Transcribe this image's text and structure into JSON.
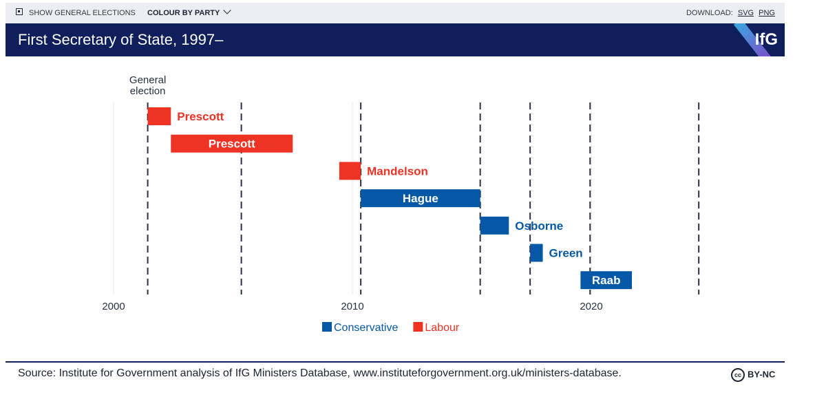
{
  "toolbar": {
    "show_elections_label": "SHOW GENERAL ELECTIONS",
    "colour_by_label": "COLOUR BY PARTY",
    "download_label": "DOWNLOAD:",
    "svg_label": "SVG",
    "png_label": "PNG"
  },
  "header": {
    "title": "First Secretary of State, 1997–",
    "logo": "IfG"
  },
  "colors": {
    "conservative": "#0558a6",
    "labour": "#ee3224",
    "navy": "#0f1f5c"
  },
  "chart_data": {
    "type": "gantt",
    "title": "First Secretary of State, 1997–",
    "x_range": [
      1998.6,
      2027
    ],
    "x_ticks": [
      2000,
      2010,
      2020
    ],
    "annotation": [
      "General",
      "election"
    ],
    "election_years": [
      2001.43,
      2005.35,
      2010.35,
      2015.35,
      2017.44,
      2019.95,
      2024.5
    ],
    "tenures": [
      {
        "name": "Prescott",
        "party": "Labour",
        "start": 2001.43,
        "end": 2002.4,
        "label_position": "outside"
      },
      {
        "name": "Prescott",
        "party": "Labour",
        "start": 2002.4,
        "end": 2007.5,
        "label_position": "inside"
      },
      {
        "name": "Mandelson",
        "party": "Labour",
        "start": 2009.45,
        "end": 2010.35,
        "label_position": "outside"
      },
      {
        "name": "Hague",
        "party": "Conservative",
        "start": 2010.35,
        "end": 2015.35,
        "label_position": "inside"
      },
      {
        "name": "Osborne",
        "party": "Conservative",
        "start": 2015.35,
        "end": 2016.55,
        "label_position": "outside"
      },
      {
        "name": "Green",
        "party": "Conservative",
        "start": 2017.44,
        "end": 2017.97,
        "label_position": "outside"
      },
      {
        "name": "Raab",
        "party": "Conservative",
        "start": 2019.55,
        "end": 2021.7,
        "label_position": "inside"
      }
    ],
    "legend": [
      {
        "label": "Conservative",
        "party": "Conservative"
      },
      {
        "label": "Labour",
        "party": "Labour"
      }
    ]
  },
  "footer": {
    "source": "Source: Institute for Government analysis of IfG Ministers Database, www.instituteforgovernment.org.uk/ministers-database.",
    "license_badge": "cc",
    "license": "BY-NC"
  }
}
